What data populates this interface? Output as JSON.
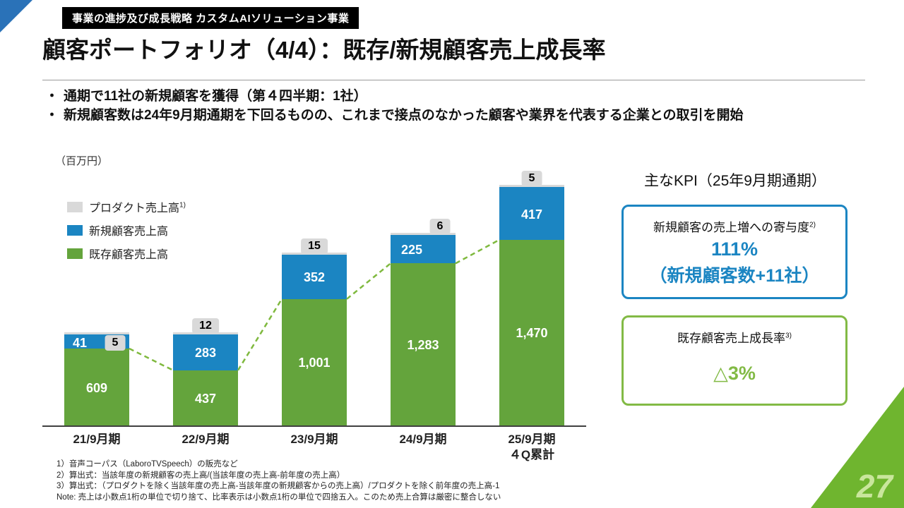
{
  "page": {
    "badge": "事業の進捗及び成長戦略 カスタムAIソリューション事業",
    "title": "顧客ポートフォリオ（4/4）：既存/新規顧客売上成長率",
    "page_number": "27"
  },
  "bullets": [
    "通期で11社の新規顧客を獲得（第４四半期：1社）",
    "新規顧客数は24年9月期通期を下回るものの、これまで接点のなかった顧客や業界を代表する企業との取引を開始"
  ],
  "chart_data": {
    "type": "bar",
    "stacked": true,
    "unit_label": "（百万円）",
    "categories": [
      "21/9月期",
      "22/9月期",
      "23/9月期",
      "24/9月期",
      "25/9月期\n４Q累計"
    ],
    "series": [
      {
        "name": "既存顧客売上高",
        "role": "existing",
        "color": "#64a43c",
        "values": [
          609,
          437,
          1001,
          1283,
          1470
        ]
      },
      {
        "name": "新規顧客売上高",
        "role": "new",
        "color": "#1b85c2",
        "values": [
          41,
          283,
          352,
          225,
          417
        ]
      },
      {
        "name": "プロダクト売上高",
        "sup": "1)",
        "role": "product",
        "color": "#d9d9d9",
        "values": [
          5,
          12,
          15,
          6,
          5
        ]
      }
    ],
    "legend": [
      {
        "label": "プロダクト売上高",
        "sup": "1)",
        "color": "#d9d9d9"
      },
      {
        "label": "新規顧客売上高",
        "sup": "",
        "color": "#1b85c2"
      },
      {
        "label": "既存顧客売上高",
        "sup": "",
        "color": "#64a43c"
      }
    ],
    "ylim": [
      0,
      2000
    ],
    "trend_line": {
      "on_series": "既存顧客売上高",
      "style": "dashed",
      "color": "#7fb93e"
    }
  },
  "kpi": {
    "heading": "主なKPI（25年9月期通期）",
    "boxes": [
      {
        "label": "新規顧客の売上増への寄与度",
        "sup": "2)",
        "value": "111%",
        "subvalue": "（新規顧客数+11社）"
      },
      {
        "label": "既存顧客売上成長率",
        "sup": "3)",
        "value": "△3%",
        "subvalue": ""
      }
    ]
  },
  "footnotes": [
    "1）音声コーパス（LaboroTVSpeech）の販売など",
    "2）算出式：当該年度の新規顧客の売上高/(当該年度の売上高-前年度の売上高）",
    "3）算出式：（プロダクトを除く当該年度の売上高-当該年度の新規顧客からの売上高）/プロダクトを除く前年度の売上高-1",
    "Note: 売上は小数点1桁の単位で切り捨て、比率表示は小数点1桁の単位で四捨五入。このため売上合算は厳密に整合しない"
  ]
}
